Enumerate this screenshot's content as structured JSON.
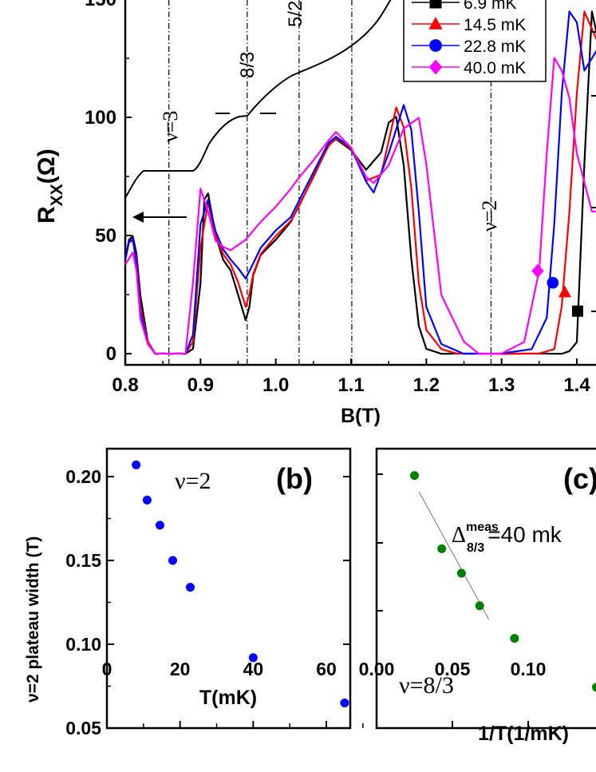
{
  "chart_data": [
    {
      "panel": "a",
      "type": "line",
      "xlabel": "B(T)",
      "ylabel_main": "R",
      "ylabel_sub": "XX",
      "ylabel_unit": "(Ω)",
      "xlim": [
        0.8,
        1.45
      ],
      "ylim": [
        -5,
        150
      ],
      "xticks": [
        "0.8",
        "0.9",
        "1.0",
        "1.1",
        "1.2",
        "1.3",
        "1.4"
      ],
      "yticks": [
        "0",
        "50",
        "100",
        "150"
      ],
      "annotations": [
        "ν=3",
        "8/3",
        "5/2",
        "ν=2"
      ],
      "legend": {
        "placement": "top-right",
        "entries": [
          {
            "label": "6.9 mK",
            "color": "#000000",
            "marker": "square"
          },
          {
            "label": "14.5 mK",
            "color": "#ff0000",
            "marker": "triangle"
          },
          {
            "label": "22.8 mK",
            "color": "#0000ff",
            "marker": "circle"
          },
          {
            "label": "40.0 mK",
            "color": "#ff00ff",
            "marker": "diamond"
          }
        ]
      },
      "series": [
        {
          "name": "6.9 mK",
          "color": "#000000",
          "x": [
            0.8,
            0.805,
            0.81,
            0.815,
            0.82,
            0.83,
            0.84,
            0.85,
            0.86,
            0.87,
            0.88,
            0.89,
            0.9,
            0.905,
            0.91,
            0.92,
            0.93,
            0.94,
            0.95,
            0.96,
            0.965,
            0.97,
            0.98,
            1.0,
            1.02,
            1.03,
            1.05,
            1.07,
            1.08,
            1.1,
            1.12,
            1.14,
            1.15,
            1.16,
            1.17,
            1.18,
            1.19,
            1.2,
            1.22,
            1.25,
            1.3,
            1.35,
            1.38,
            1.39,
            1.4,
            1.41,
            1.42,
            1.43,
            1.445
          ],
          "y": [
            40,
            48,
            50,
            42,
            25,
            5,
            0,
            0,
            0,
            0,
            0,
            2,
            30,
            65,
            68,
            50,
            40,
            35,
            25,
            14,
            20,
            33,
            42,
            48,
            56,
            62,
            75,
            88,
            91,
            86,
            78,
            85,
            98,
            100,
            80,
            40,
            12,
            2,
            0,
            0,
            0,
            0,
            0,
            1,
            5,
            80,
            145,
            130,
            110
          ]
        },
        {
          "name": "14.5 mK",
          "color": "#ff0000",
          "x": [
            0.8,
            0.805,
            0.81,
            0.815,
            0.82,
            0.83,
            0.84,
            0.85,
            0.86,
            0.87,
            0.88,
            0.89,
            0.9,
            0.91,
            0.92,
            0.93,
            0.94,
            0.95,
            0.96,
            0.965,
            0.97,
            0.98,
            1.0,
            1.02,
            1.03,
            1.05,
            1.07,
            1.08,
            1.1,
            1.12,
            1.14,
            1.16,
            1.17,
            1.18,
            1.19,
            1.2,
            1.22,
            1.24,
            1.3,
            1.35,
            1.37,
            1.38,
            1.39,
            1.4,
            1.41,
            1.43,
            1.445
          ],
          "y": [
            40,
            47,
            48,
            40,
            20,
            5,
            0,
            0,
            0,
            0,
            0,
            5,
            45,
            64,
            50,
            42,
            38,
            30,
            20,
            25,
            34,
            42,
            50,
            56,
            62,
            75,
            88,
            91,
            87,
            73,
            76,
            104,
            96,
            70,
            30,
            10,
            2,
            0,
            0,
            0,
            2,
            20,
            60,
            110,
            145,
            130,
            95
          ]
        },
        {
          "name": "22.8 mK",
          "color": "#0000ff",
          "x": [
            0.8,
            0.805,
            0.81,
            0.815,
            0.82,
            0.83,
            0.84,
            0.85,
            0.86,
            0.87,
            0.88,
            0.89,
            0.9,
            0.91,
            0.92,
            0.93,
            0.94,
            0.95,
            0.96,
            0.97,
            0.98,
            1.0,
            1.02,
            1.03,
            1.05,
            1.07,
            1.08,
            1.1,
            1.12,
            1.13,
            1.15,
            1.17,
            1.18,
            1.19,
            1.2,
            1.22,
            1.25,
            1.3,
            1.34,
            1.36,
            1.37,
            1.38,
            1.39,
            1.4,
            1.41,
            1.43,
            1.445
          ],
          "y": [
            40,
            47,
            49,
            38,
            18,
            4,
            0,
            0,
            0,
            0,
            0,
            8,
            55,
            65,
            52,
            44,
            40,
            36,
            32,
            38,
            45,
            52,
            58,
            64,
            77,
            89,
            92,
            87,
            73,
            68,
            85,
            105,
            95,
            60,
            20,
            4,
            0,
            0,
            2,
            15,
            55,
            110,
            145,
            140,
            120,
            130,
            95
          ]
        },
        {
          "name": "40.0 mK",
          "color": "#ff00ff",
          "x": [
            0.8,
            0.805,
            0.81,
            0.815,
            0.82,
            0.83,
            0.84,
            0.85,
            0.86,
            0.87,
            0.88,
            0.89,
            0.9,
            0.91,
            0.92,
            0.93,
            0.94,
            0.96,
            0.98,
            1.0,
            1.02,
            1.03,
            1.05,
            1.07,
            1.08,
            1.1,
            1.12,
            1.13,
            1.15,
            1.17,
            1.19,
            1.2,
            1.22,
            1.25,
            1.27,
            1.3,
            1.33,
            1.35,
            1.36,
            1.37,
            1.38,
            1.39,
            1.4,
            1.42,
            1.445
          ],
          "y": [
            38,
            40,
            43,
            35,
            15,
            4,
            0,
            0,
            0,
            0,
            0,
            30,
            70,
            60,
            48,
            45,
            44,
            48,
            56,
            62,
            70,
            74,
            82,
            90,
            94,
            87,
            75,
            72,
            80,
            95,
            100,
            80,
            25,
            5,
            0,
            0,
            5,
            35,
            85,
            125,
            120,
            108,
            85,
            60,
            60
          ]
        }
      ]
    },
    {
      "panel": "b",
      "type": "scatter",
      "xlabel": "T(mK)",
      "ylabel": "ν=2 plateau width (T)",
      "annotation": "ν=2",
      "xlim": [
        0,
        70
      ],
      "ylim": [
        0.05,
        0.225
      ],
      "xticks": [
        "0",
        "20",
        "40",
        "60"
      ],
      "yticks": [
        "0.05",
        "0.10",
        "0.15",
        "0.20"
      ],
      "color": "#0000ff",
      "points": [
        [
          8,
          0.207
        ],
        [
          11,
          0.186
        ],
        [
          14.5,
          0.171
        ],
        [
          18,
          0.15
        ],
        [
          22.8,
          0.134
        ],
        [
          40,
          0.092
        ],
        [
          65,
          0.065
        ]
      ]
    },
    {
      "panel": "c",
      "type": "scatter",
      "xlabel": "1/T(1/mK)",
      "annotation": "ν=8/3",
      "label_main": "Δ",
      "label_sup": "meas",
      "label_sub": "8/3",
      "label_rest": "=40 mk",
      "xlim": [
        0,
        0.15
      ],
      "ylim": [
        0,
        1
      ],
      "xticks": [
        "0.00",
        "0.05",
        "0.10",
        "0"
      ],
      "color": "#008000",
      "points": [
        [
          0.025,
          0.91
        ],
        [
          0.043,
          0.64
        ],
        [
          0.056,
          0.55
        ],
        [
          0.068,
          0.43
        ],
        [
          0.091,
          0.31
        ],
        [
          0.145,
          0.13
        ]
      ],
      "fit": [
        [
          0.028,
          0.85
        ],
        [
          0.074,
          0.38
        ]
      ]
    }
  ],
  "panel_tags": {
    "b": "(b)",
    "c": "(c)"
  }
}
